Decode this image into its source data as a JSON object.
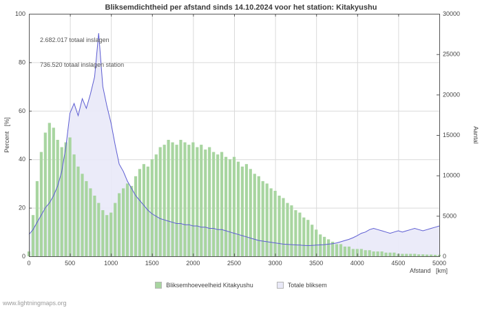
{
  "title": "Bliksemdichtheid per afstand sinds 14.10.2024 voor het station: Kitakyushu",
  "annotations": {
    "total": "2.682.017 totaal inslagen",
    "station": "736.520 totaal inslagen station"
  },
  "axes": {
    "left_label": "Percent   [%]",
    "right_label": "Aantal",
    "x_label": "Afstand   [km]"
  },
  "legend": [
    {
      "label": "Bliksemhoeveelheid Kitakyushu",
      "color": "#a8d5a0"
    },
    {
      "label": "Totale bliksem",
      "color": "#e9e9f8"
    }
  ],
  "footer": "www.lightningmaps.org",
  "chart_data": {
    "type": "area",
    "title": "Bliksemdichtheid per afstand sinds 14.10.2024 voor het station: Kitakyushu",
    "xlabel": "Afstand [km]",
    "ylabel_left": "Percent [%]",
    "ylabel_right": "Aantal",
    "x_range": [
      0,
      5000
    ],
    "left_range": [
      0,
      100
    ],
    "right_range": [
      0,
      30000
    ],
    "x_ticks": [
      0,
      500,
      1000,
      1500,
      2000,
      2500,
      3000,
      3500,
      4000,
      4500,
      5000
    ],
    "left_ticks": [
      0,
      20,
      40,
      60,
      80,
      100
    ],
    "right_ticks": [
      0,
      5000,
      10000,
      15000,
      20000,
      25000,
      30000
    ],
    "grid": true,
    "legend_position": "bottom",
    "colors": {
      "grid": "#d9d9d9",
      "frame": "#555555",
      "text": "#444444"
    },
    "x": [
      0,
      50,
      100,
      150,
      200,
      250,
      300,
      350,
      400,
      450,
      500,
      550,
      600,
      650,
      700,
      750,
      800,
      850,
      900,
      950,
      1000,
      1050,
      1100,
      1150,
      1200,
      1250,
      1300,
      1350,
      1400,
      1450,
      1500,
      1550,
      1600,
      1650,
      1700,
      1750,
      1800,
      1850,
      1900,
      1950,
      2000,
      2050,
      2100,
      2150,
      2200,
      2250,
      2300,
      2350,
      2400,
      2450,
      2500,
      2550,
      2600,
      2650,
      2700,
      2750,
      2800,
      2850,
      2900,
      2950,
      3000,
      3050,
      3100,
      3150,
      3200,
      3250,
      3300,
      3350,
      3400,
      3450,
      3500,
      3550,
      3600,
      3650,
      3700,
      3750,
      3800,
      3850,
      3900,
      3950,
      4000,
      4050,
      4100,
      4150,
      4200,
      4250,
      4300,
      4350,
      4400,
      4450,
      4500,
      4550,
      4600,
      4650,
      4700,
      4750,
      4800,
      4850,
      4900,
      4950,
      5000
    ],
    "series": [
      {
        "name": "Bliksemhoeveelheid Kitakyushu",
        "axis": "left",
        "style": "bars",
        "unit": "percent",
        "color": "#a8d5a0",
        "values": [
          2,
          17,
          31,
          43,
          51,
          55,
          53,
          48,
          45,
          47,
          49,
          42,
          37,
          34,
          31,
          28,
          25,
          22,
          19,
          17,
          18,
          22,
          26,
          28,
          30,
          29,
          33,
          36,
          38,
          37,
          40,
          42,
          45,
          46,
          48,
          47,
          46,
          48,
          47,
          46,
          47,
          45,
          46,
          44,
          45,
          43,
          42,
          43,
          41,
          40,
          41,
          39,
          37,
          38,
          36,
          34,
          33,
          31,
          30,
          28,
          27,
          25,
          24,
          22,
          21,
          19,
          18,
          16,
          15,
          13,
          11,
          9,
          8,
          7,
          6,
          5,
          5,
          4,
          4,
          3,
          3,
          3,
          2.5,
          2.5,
          2,
          2,
          2,
          1.5,
          1.5,
          1.5,
          1,
          1,
          1,
          1,
          1,
          0.8,
          0.8,
          0.7,
          0.7,
          0.6,
          0.6
        ]
      },
      {
        "name": "Totale bliksem",
        "axis": "right",
        "style": "area-line",
        "unit": "count",
        "fill": "#e9e9f8",
        "line": "#5c5cd2",
        "values": [
          2700,
          3300,
          4200,
          5100,
          6000,
          6600,
          7500,
          8700,
          10500,
          13500,
          17700,
          18900,
          17400,
          19500,
          18300,
          20100,
          22200,
          27600,
          21000,
          18600,
          16500,
          13800,
          11400,
          10500,
          9300,
          8400,
          7500,
          6900,
          6300,
          5700,
          5250,
          4950,
          4650,
          4500,
          4350,
          4200,
          4050,
          4050,
          3900,
          3900,
          3750,
          3750,
          3600,
          3600,
          3450,
          3450,
          3300,
          3300,
          3150,
          3000,
          2850,
          2700,
          2550,
          2400,
          2250,
          2100,
          1950,
          1875,
          1800,
          1725,
          1650,
          1575,
          1500,
          1470,
          1440,
          1410,
          1380,
          1350,
          1320,
          1350,
          1380,
          1410,
          1440,
          1500,
          1560,
          1650,
          1800,
          1950,
          2100,
          2300,
          2550,
          2850,
          3000,
          3300,
          3450,
          3300,
          3150,
          3000,
          2850,
          3000,
          3150,
          3000,
          3150,
          3300,
          3450,
          3300,
          3150,
          3300,
          3450,
          3600,
          3750
        ]
      }
    ]
  }
}
